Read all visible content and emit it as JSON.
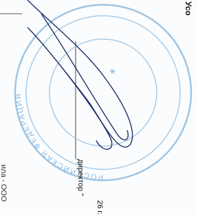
{
  "document": {
    "header": "Усо",
    "position": "директор \"",
    "date": "26 г.",
    "left_fragment": "ила - ООО",
    "stamp_text": "РОССИЙСКАЯ ФЕДЕРАЦИЯ"
  }
}
